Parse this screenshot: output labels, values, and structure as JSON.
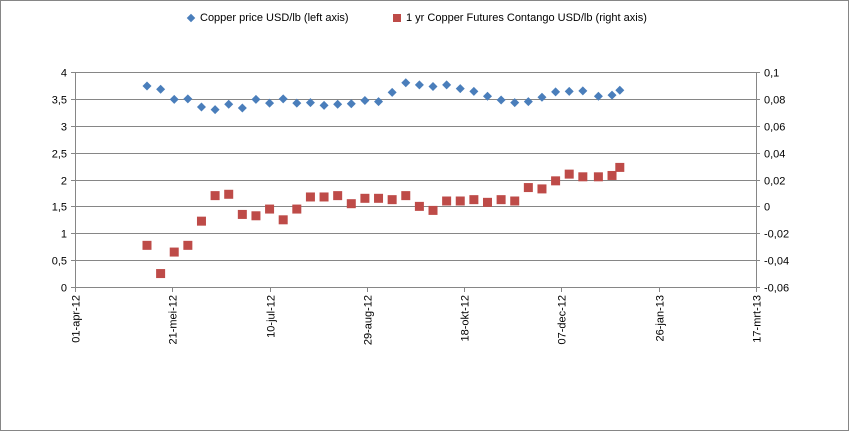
{
  "chart_data": {
    "type": "scatter",
    "title": "",
    "legend": {
      "placement": "top",
      "entries": [
        {
          "label": "Copper price USD/lb (left axis)",
          "marker": "diamond",
          "color": "#4a7ebb"
        },
        {
          "label": "1 yr Copper Futures Contango USD/lb (right axis)",
          "marker": "square",
          "color": "#be4b48"
        }
      ]
    },
    "x_axis": {
      "type": "date",
      "range": [
        "2012-04-01",
        "2013-03-17"
      ],
      "tick_labels": [
        "01-apr-12",
        "21-mei-12",
        "10-jul-12",
        "29-aug-12",
        "18-okt-12",
        "07-dec-12",
        "26-jan-13",
        "17-mrt-13"
      ],
      "tick_dates": [
        "2012-04-01",
        "2012-05-21",
        "2012-07-10",
        "2012-08-29",
        "2012-10-18",
        "2012-12-07",
        "2013-01-26",
        "2013-03-17"
      ]
    },
    "y_left": {
      "range": [
        0,
        4
      ],
      "tick_labels": [
        "0",
        "0,5",
        "1",
        "1,5",
        "2",
        "2,5",
        "3",
        "3,5",
        "4"
      ],
      "tick_values": [
        0,
        0.5,
        1,
        1.5,
        2,
        2.5,
        3,
        3.5,
        4
      ]
    },
    "y_right": {
      "range": [
        -0.06,
        0.1
      ],
      "tick_labels": [
        "-0,06",
        "-0,04",
        "-0,02",
        "0",
        "0,02",
        "0,04",
        "0,06",
        "0,08",
        "0,1"
      ],
      "tick_values": [
        -0.06,
        -0.04,
        -0.02,
        0,
        0.02,
        0.04,
        0.06,
        0.08,
        0.1
      ]
    },
    "grid": "horizontal",
    "series": [
      {
        "name": "Copper price USD/lb (left axis)",
        "axis": "left",
        "color": "#4a7ebb",
        "marker": "diamond",
        "points": [
          {
            "x": "2012-05-08",
            "y": 3.74
          },
          {
            "x": "2012-05-15",
            "y": 3.68
          },
          {
            "x": "2012-05-22",
            "y": 3.49
          },
          {
            "x": "2012-05-29",
            "y": 3.5
          },
          {
            "x": "2012-06-05",
            "y": 3.35
          },
          {
            "x": "2012-06-12",
            "y": 3.3
          },
          {
            "x": "2012-06-19",
            "y": 3.4
          },
          {
            "x": "2012-06-26",
            "y": 3.33
          },
          {
            "x": "2012-07-03",
            "y": 3.49
          },
          {
            "x": "2012-07-10",
            "y": 3.42
          },
          {
            "x": "2012-07-17",
            "y": 3.5
          },
          {
            "x": "2012-07-24",
            "y": 3.42
          },
          {
            "x": "2012-07-31",
            "y": 3.43
          },
          {
            "x": "2012-08-07",
            "y": 3.38
          },
          {
            "x": "2012-08-14",
            "y": 3.4
          },
          {
            "x": "2012-08-21",
            "y": 3.41
          },
          {
            "x": "2012-08-28",
            "y": 3.47
          },
          {
            "x": "2012-09-04",
            "y": 3.45
          },
          {
            "x": "2012-09-11",
            "y": 3.62
          },
          {
            "x": "2012-09-18",
            "y": 3.8
          },
          {
            "x": "2012-09-25",
            "y": 3.76
          },
          {
            "x": "2012-10-02",
            "y": 3.73
          },
          {
            "x": "2012-10-09",
            "y": 3.76
          },
          {
            "x": "2012-10-16",
            "y": 3.69
          },
          {
            "x": "2012-10-23",
            "y": 3.64
          },
          {
            "x": "2012-10-30",
            "y": 3.55
          },
          {
            "x": "2012-11-06",
            "y": 3.48
          },
          {
            "x": "2012-11-13",
            "y": 3.43
          },
          {
            "x": "2012-11-20",
            "y": 3.45
          },
          {
            "x": "2012-11-27",
            "y": 3.53
          },
          {
            "x": "2012-12-04",
            "y": 3.63
          },
          {
            "x": "2012-12-11",
            "y": 3.64
          },
          {
            "x": "2012-12-18",
            "y": 3.65
          },
          {
            "x": "2012-12-26",
            "y": 3.55
          },
          {
            "x": "2013-01-02",
            "y": 3.57
          },
          {
            "x": "2013-01-06",
            "y": 3.66
          }
        ]
      },
      {
        "name": "1 yr Copper Futures Contango USD/lb (right axis)",
        "axis": "right",
        "color": "#be4b48",
        "marker": "square",
        "points": [
          {
            "x": "2012-05-08",
            "y": -0.029
          },
          {
            "x": "2012-05-15",
            "y": -0.05
          },
          {
            "x": "2012-05-22",
            "y": -0.034
          },
          {
            "x": "2012-05-29",
            "y": -0.029
          },
          {
            "x": "2012-06-05",
            "y": -0.011
          },
          {
            "x": "2012-06-12",
            "y": 0.008
          },
          {
            "x": "2012-06-19",
            "y": 0.009
          },
          {
            "x": "2012-06-26",
            "y": -0.006
          },
          {
            "x": "2012-07-03",
            "y": -0.007
          },
          {
            "x": "2012-07-10",
            "y": -0.002
          },
          {
            "x": "2012-07-17",
            "y": -0.01
          },
          {
            "x": "2012-07-24",
            "y": -0.002
          },
          {
            "x": "2012-07-31",
            "y": 0.007
          },
          {
            "x": "2012-08-07",
            "y": 0.007
          },
          {
            "x": "2012-08-14",
            "y": 0.008
          },
          {
            "x": "2012-08-21",
            "y": 0.002
          },
          {
            "x": "2012-08-28",
            "y": 0.006
          },
          {
            "x": "2012-09-04",
            "y": 0.006
          },
          {
            "x": "2012-09-11",
            "y": 0.005
          },
          {
            "x": "2012-09-18",
            "y": 0.008
          },
          {
            "x": "2012-09-25",
            "y": 0.0
          },
          {
            "x": "2012-10-02",
            "y": -0.003
          },
          {
            "x": "2012-10-09",
            "y": 0.004
          },
          {
            "x": "2012-10-16",
            "y": 0.004
          },
          {
            "x": "2012-10-23",
            "y": 0.005
          },
          {
            "x": "2012-10-30",
            "y": 0.003
          },
          {
            "x": "2012-11-06",
            "y": 0.005
          },
          {
            "x": "2012-11-13",
            "y": 0.004
          },
          {
            "x": "2012-11-20",
            "y": 0.014
          },
          {
            "x": "2012-11-27",
            "y": 0.013
          },
          {
            "x": "2012-12-04",
            "y": 0.019
          },
          {
            "x": "2012-12-11",
            "y": 0.024
          },
          {
            "x": "2012-12-18",
            "y": 0.022
          },
          {
            "x": "2012-12-26",
            "y": 0.022
          },
          {
            "x": "2013-01-02",
            "y": 0.023
          },
          {
            "x": "2013-01-06",
            "y": 0.029
          }
        ]
      }
    ]
  }
}
